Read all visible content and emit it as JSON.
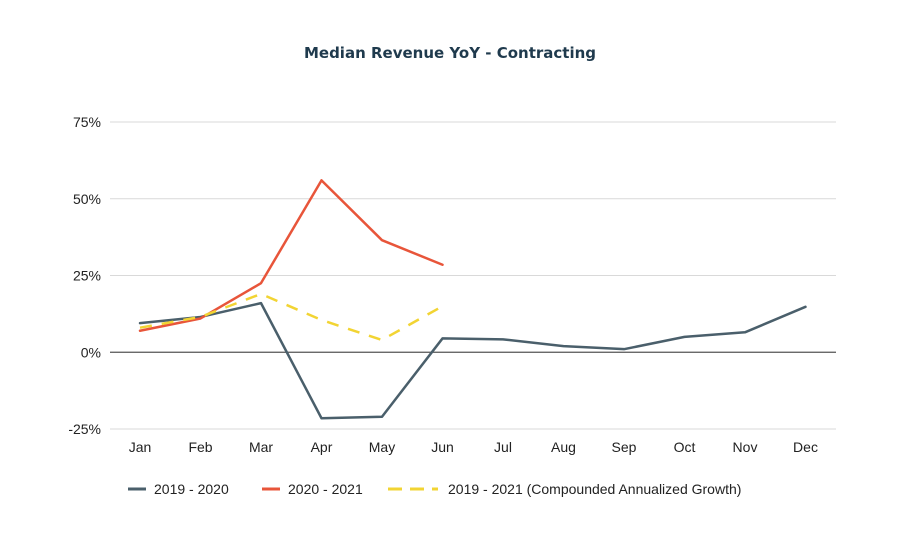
{
  "chart_data": {
    "type": "line",
    "title": "Median Revenue YoY - Contracting",
    "categories": [
      "Jan",
      "Feb",
      "Mar",
      "Apr",
      "May",
      "Jun",
      "Jul",
      "Aug",
      "Sep",
      "Oct",
      "Nov",
      "Dec"
    ],
    "ylim": [
      -25,
      75
    ],
    "yticks": [
      -25,
      0,
      25,
      50,
      75
    ],
    "ytick_labels": [
      "-25%",
      "0%",
      "25%",
      "50%",
      "75%"
    ],
    "grid": true,
    "legend_position": "bottom",
    "series": [
      {
        "name": "2019 - 2020",
        "color": "#4a5f6b",
        "style": "solid",
        "values": [
          9.5,
          11.5,
          16,
          -21.5,
          -21,
          4.5,
          4.2,
          2,
          1,
          5,
          6.5,
          14.8
        ]
      },
      {
        "name": "2020 - 2021",
        "color": "#e8553a",
        "style": "solid",
        "values": [
          7,
          11,
          22.5,
          56,
          36.5,
          28.5,
          null,
          null,
          null,
          null,
          null,
          null
        ]
      },
      {
        "name": "2019 - 2021 (Compounded Annualized Growth)",
        "color": "#f2d433",
        "style": "dashed",
        "values": [
          8,
          11.5,
          19,
          10.5,
          4,
          15,
          null,
          null,
          null,
          null,
          null,
          null
        ]
      }
    ]
  }
}
